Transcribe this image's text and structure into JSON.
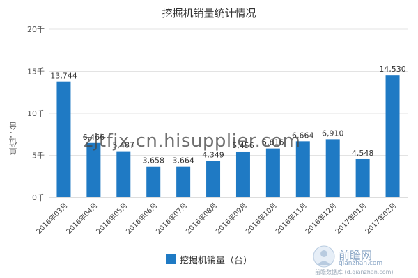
{
  "chart_data": {
    "type": "bar",
    "title": "挖掘机销量统计情况",
    "ylabel": "单位：台",
    "xlabel": "",
    "categories": [
      "2016年03月",
      "2016年04月",
      "2016年05月",
      "2016年06月",
      "2016年07月",
      "2016年08月",
      "2016年09月",
      "2016年10月",
      "2016年11月",
      "2016年12月",
      "2017年01月",
      "2017年02月"
    ],
    "series": [
      {
        "name": "挖掘机销量（台）",
        "values": [
          13744,
          6466,
          5487,
          3658,
          3664,
          4349,
          5456,
          5816,
          6664,
          6910,
          4548,
          14530
        ]
      }
    ],
    "value_labels": [
      "13,744",
      "6,466",
      "5,487",
      "3,658",
      "3,664",
      "4,349",
      "5,456",
      "5,816",
      "6,664",
      "6,910",
      "4,548",
      "14,530"
    ],
    "ylim": [
      0,
      20000
    ],
    "yticks": [
      0,
      5000,
      10000,
      15000,
      20000
    ],
    "ytick_labels": [
      "0千",
      "5千",
      "10千",
      "15千",
      "20千"
    ],
    "bar_color": "#1f7ac4",
    "grid": true,
    "legend_position": "bottom"
  },
  "watermark": "zjtfjx.cn.hisupplier.com",
  "logo": {
    "name": "前瞻网",
    "domain": "qianzhan.com",
    "database": "前瞻数据库 (d.qianzhan.com)"
  }
}
